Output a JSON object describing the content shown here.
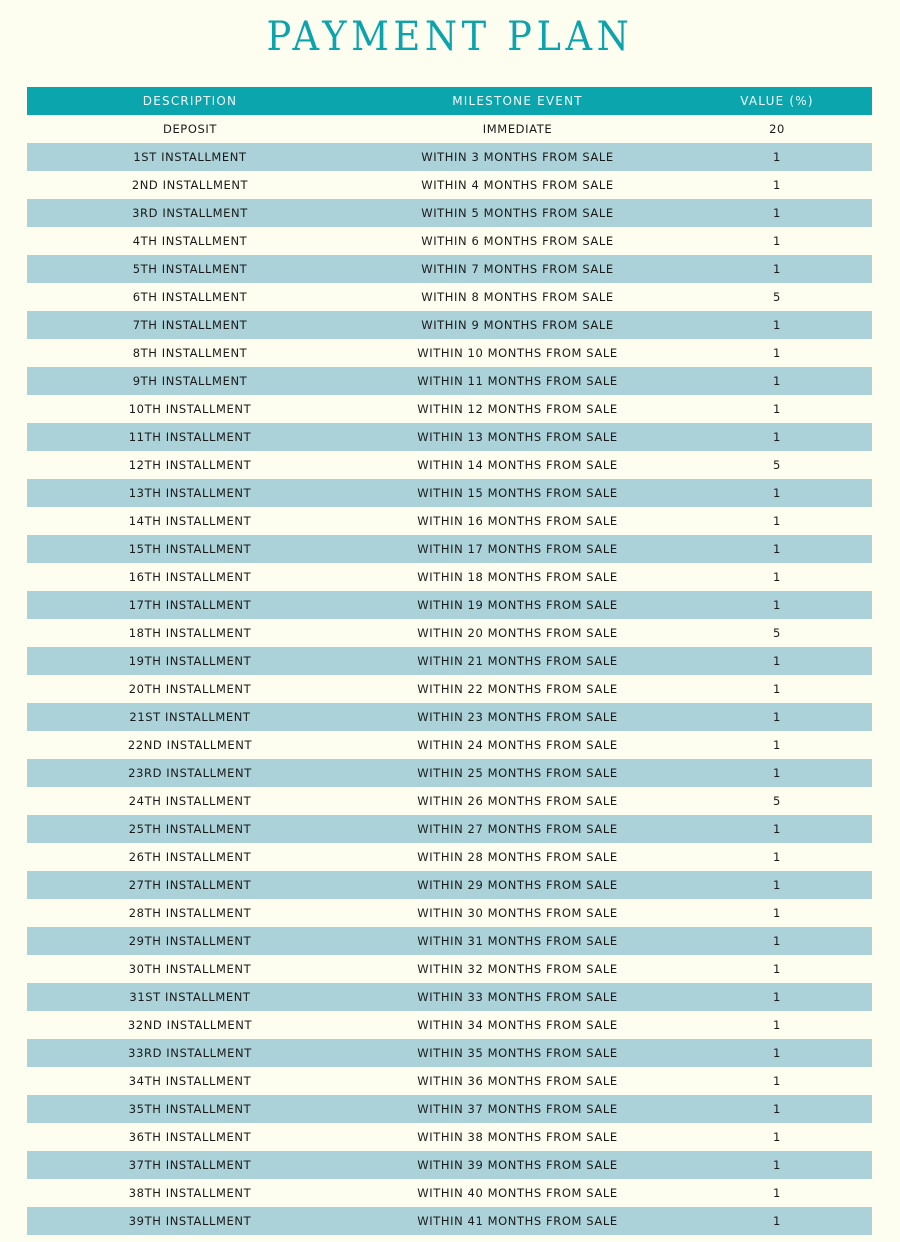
{
  "title": "PAYMENT PLAN",
  "colors": {
    "header_bg": "#0aa5ad",
    "stripe": "#abd2d8",
    "background": "#fdfdf0",
    "title": "#0ba3ac"
  },
  "columns": [
    "DESCRIPTION",
    "MILESTONE EVENT",
    "VALUE (%)"
  ],
  "rows": [
    [
      "DEPOSIT",
      "IMMEDIATE",
      "20"
    ],
    [
      "1ST INSTALLMENT",
      "WITHIN 3 MONTHS FROM SALE",
      "1"
    ],
    [
      "2ND INSTALLMENT",
      "WITHIN 4 MONTHS FROM SALE",
      "1"
    ],
    [
      "3RD INSTALLMENT",
      "WITHIN 5 MONTHS FROM SALE",
      "1"
    ],
    [
      "4TH INSTALLMENT",
      "WITHIN 6 MONTHS FROM SALE",
      "1"
    ],
    [
      "5TH INSTALLMENT",
      "WITHIN 7 MONTHS FROM SALE",
      "1"
    ],
    [
      "6TH INSTALLMENT",
      "WITHIN 8 MONTHS FROM SALE",
      "5"
    ],
    [
      "7TH INSTALLMENT",
      "WITHIN 9 MONTHS FROM SALE",
      "1"
    ],
    [
      "8TH INSTALLMENT",
      "WITHIN 10 MONTHS FROM SALE",
      "1"
    ],
    [
      "9TH INSTALLMENT",
      "WITHIN 11 MONTHS FROM SALE",
      "1"
    ],
    [
      "10TH INSTALLMENT",
      "WITHIN 12 MONTHS FROM SALE",
      "1"
    ],
    [
      "11TH INSTALLMENT",
      "WITHIN 13 MONTHS FROM SALE",
      "1"
    ],
    [
      "12TH INSTALLMENT",
      "WITHIN 14 MONTHS FROM SALE",
      "5"
    ],
    [
      "13TH INSTALLMENT",
      "WITHIN 15 MONTHS FROM SALE",
      "1"
    ],
    [
      "14TH INSTALLMENT",
      "WITHIN 16 MONTHS FROM SALE",
      "1"
    ],
    [
      "15TH INSTALLMENT",
      "WITHIN 17 MONTHS FROM SALE",
      "1"
    ],
    [
      "16TH INSTALLMENT",
      "WITHIN 18 MONTHS FROM SALE",
      "1"
    ],
    [
      "17TH INSTALLMENT",
      "WITHIN 19 MONTHS FROM SALE",
      "1"
    ],
    [
      "18TH INSTALLMENT",
      "WITHIN 20 MONTHS FROM SALE",
      "5"
    ],
    [
      "19TH INSTALLMENT",
      "WITHIN 21 MONTHS FROM SALE",
      "1"
    ],
    [
      "20TH INSTALLMENT",
      "WITHIN 22 MONTHS FROM SALE",
      "1"
    ],
    [
      "21ST INSTALLMENT",
      "WITHIN 23 MONTHS FROM SALE",
      "1"
    ],
    [
      "22ND INSTALLMENT",
      "WITHIN 24 MONTHS FROM SALE",
      "1"
    ],
    [
      "23RD INSTALLMENT",
      "WITHIN 25 MONTHS FROM SALE",
      "1"
    ],
    [
      "24TH INSTALLMENT",
      "WITHIN 26 MONTHS FROM SALE",
      "5"
    ],
    [
      "25TH INSTALLMENT",
      "WITHIN 27 MONTHS FROM SALE",
      "1"
    ],
    [
      "26TH INSTALLMENT",
      "WITHIN 28 MONTHS FROM SALE",
      "1"
    ],
    [
      "27TH INSTALLMENT",
      "WITHIN 29 MONTHS FROM SALE",
      "1"
    ],
    [
      "28TH INSTALLMENT",
      "WITHIN 30 MONTHS FROM SALE",
      "1"
    ],
    [
      "29TH INSTALLMENT",
      "WITHIN 31 MONTHS FROM SALE",
      "1"
    ],
    [
      "30TH INSTALLMENT",
      "WITHIN 32 MONTHS FROM SALE",
      "1"
    ],
    [
      "31ST INSTALLMENT",
      "WITHIN 33 MONTHS FROM SALE",
      "1"
    ],
    [
      "32ND INSTALLMENT",
      "WITHIN 34 MONTHS FROM SALE",
      "1"
    ],
    [
      "33RD INSTALLMENT",
      "WITHIN 35 MONTHS FROM SALE",
      "1"
    ],
    [
      "34TH INSTALLMENT",
      "WITHIN 36 MONTHS FROM SALE",
      "1"
    ],
    [
      "35TH INSTALLMENT",
      "WITHIN 37 MONTHS FROM SALE",
      "1"
    ],
    [
      "36TH INSTALLMENT",
      "WITHIN 38 MONTHS FROM SALE",
      "1"
    ],
    [
      "37TH INSTALLMENT",
      "WITHIN 39 MONTHS FROM SALE",
      "1"
    ],
    [
      "38TH INSTALLMENT",
      "WITHIN 40 MONTHS FROM SALE",
      "1"
    ],
    [
      "39TH INSTALLMENT",
      "WITHIN 41 MONTHS FROM SALE",
      "1"
    ]
  ]
}
